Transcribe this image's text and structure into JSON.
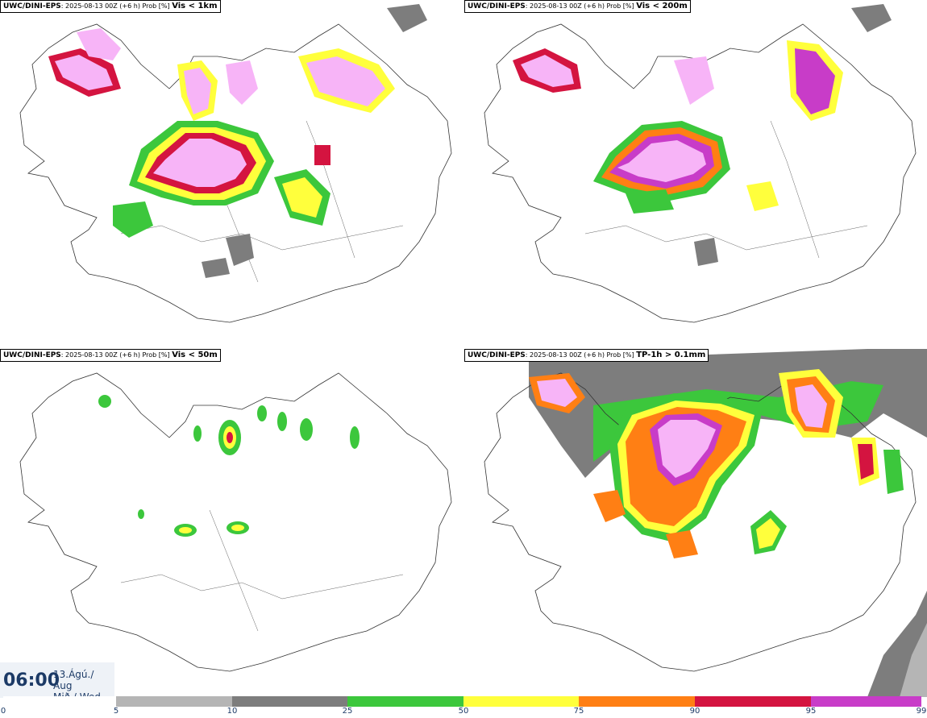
{
  "panels": [
    {
      "org": "UWC/DINI-EPS",
      "run": "2025-08-13 00Z (+6 h) Prob [%]",
      "param": "Vis < 1km"
    },
    {
      "org": "UWC/DINI-EPS",
      "run": "2025-08-13 00Z (+6 h) Prob [%]",
      "param": "Vis < 200m"
    },
    {
      "org": "UWC/DINI-EPS",
      "run": "2025-08-13 00Z (+6 h) Prob [%]",
      "param": "Vis < 50m"
    },
    {
      "org": "UWC/DINI-EPS",
      "run": "2025-08-13 00Z (+6 h) Prob [%]",
      "param": "TP-1h > 0.1mm"
    }
  ],
  "valid_time": {
    "time": "06:00",
    "date_line1": "13.Ágú./ Aug",
    "date_line2": "Mið./ Wed"
  },
  "legend": {
    "ticks": [
      "0",
      "5",
      "10",
      "25",
      "50",
      "75",
      "90",
      "95",
      "99"
    ],
    "colors": [
      "#ffffff",
      "#b5b5b5",
      "#7d7d7d",
      "#3cc73c",
      "#ffff3c",
      "#ff7f14",
      "#d41440",
      "#c83cc8",
      "#f7b4f7"
    ]
  }
}
